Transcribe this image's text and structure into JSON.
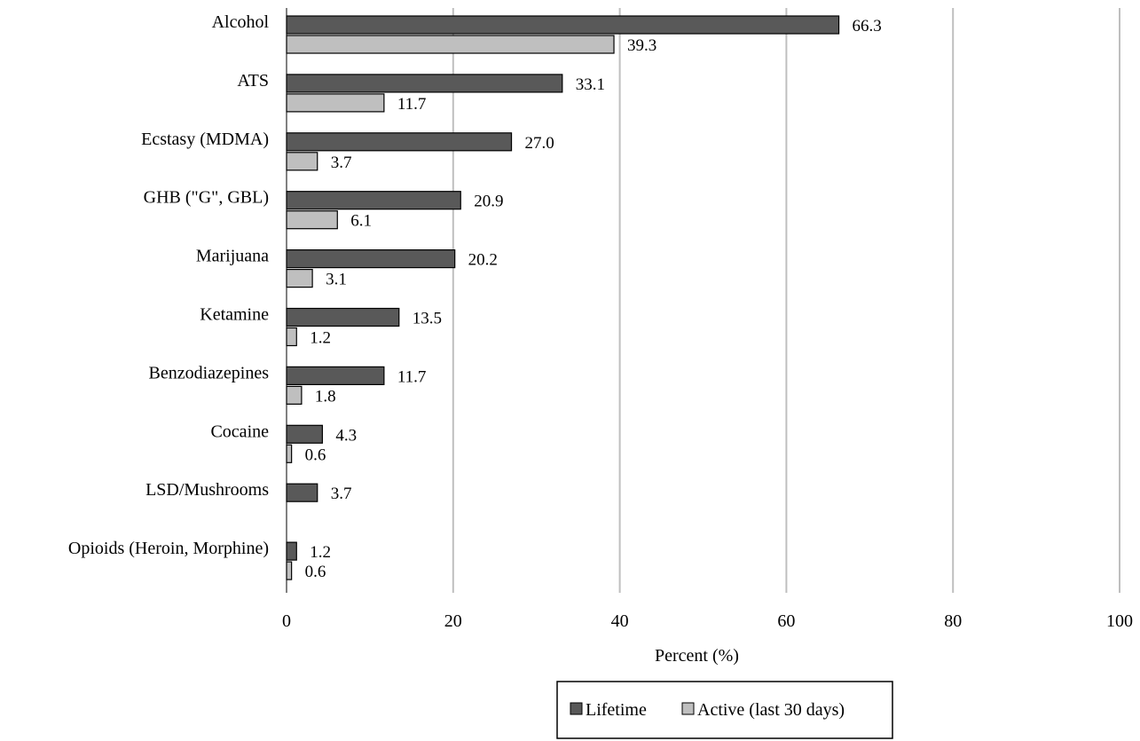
{
  "chart_data": {
    "type": "bar",
    "orientation": "horizontal",
    "title": "",
    "xlabel": "Percent (%)",
    "ylabel": "",
    "xlim": [
      0,
      100
    ],
    "xticks": [
      0,
      20,
      40,
      60,
      80,
      100
    ],
    "grid": true,
    "legend_position": "bottom",
    "categories": [
      "Alcohol",
      "ATS",
      "Ecstasy (MDMA)",
      "GHB (\"G\", GBL)",
      "Marijuana",
      "Ketamine",
      "Benzodiazepines",
      "Cocaine",
      "LSD/Mushrooms",
      "Opioids (Heroin, Morphine)"
    ],
    "series": [
      {
        "name": "Lifetime",
        "color": "#595959",
        "values": [
          66.3,
          33.1,
          27.0,
          20.9,
          20.2,
          13.5,
          11.7,
          4.3,
          3.7,
          1.2
        ],
        "labels": [
          "66.3",
          "33.1",
          "27.0",
          "20.9",
          "20.2",
          "13.5",
          "11.7",
          "4.3",
          "3.7",
          "1.2"
        ]
      },
      {
        "name": "Active (last 30 days)",
        "color": "#bfbfbf",
        "values": [
          39.3,
          11.7,
          3.7,
          6.1,
          3.1,
          1.2,
          1.8,
          0.6,
          null,
          0.6
        ],
        "labels": [
          "39.3",
          "11.7",
          "3.7",
          "6.1",
          "3.1",
          "1.2",
          "1.8",
          "0.6",
          "",
          "0.6"
        ]
      }
    ]
  }
}
